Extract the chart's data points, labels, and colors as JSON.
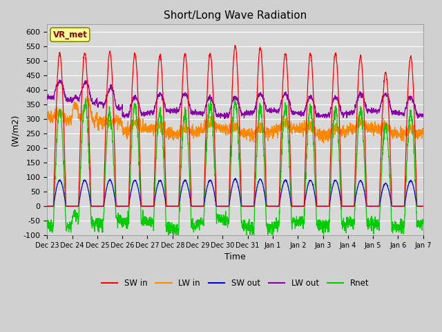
{
  "title": "Short/Long Wave Radiation",
  "xlabel": "Time",
  "ylabel": "(W/m2)",
  "ylim": [
    -100,
    625
  ],
  "yticks": [
    -100,
    -50,
    0,
    50,
    100,
    150,
    200,
    250,
    300,
    350,
    400,
    450,
    500,
    550,
    600
  ],
  "background_color": "#d8d8d8",
  "plot_background": "#d8d8d8",
  "grid_color": "white",
  "annotation_text": "VR_met",
  "annotation_color": "#8B0000",
  "annotation_bg": "#FFFF99",
  "colors": {
    "SW_in": "#ff0000",
    "LW_in": "#ff8800",
    "SW_out": "#0000dd",
    "LW_out": "#8800aa",
    "Rnet": "#00cc00"
  },
  "legend_labels": [
    "SW in",
    "LW in",
    "SW out",
    "LW out",
    "Rnet"
  ],
  "n_days": 15
}
